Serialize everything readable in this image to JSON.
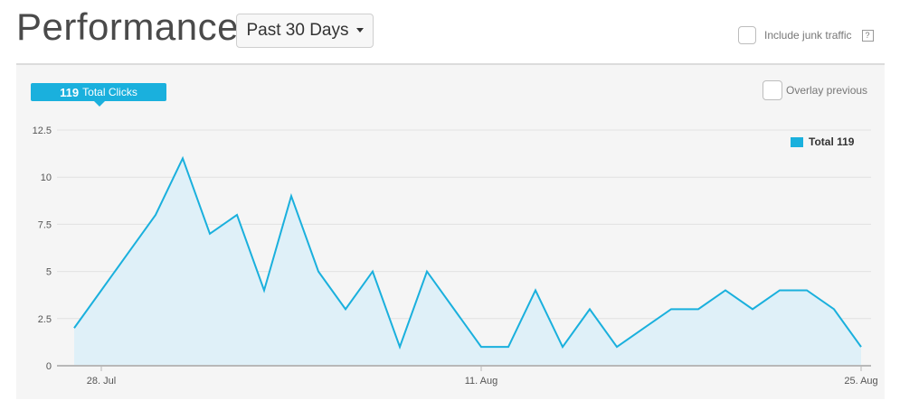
{
  "header": {
    "title": "Performance",
    "range_label": "Past 30 Days",
    "junk_label": "Include junk traffic",
    "help_glyph": "?"
  },
  "chart": {
    "badge_value": "119",
    "badge_label": "Total Clicks",
    "overlay_label": "Overlay previous",
    "legend_label": "Total 119"
  },
  "chart_data": {
    "type": "area",
    "series": [
      {
        "values": [
          2,
          4,
          6,
          8,
          11,
          7,
          8,
          4,
          9,
          5,
          3,
          5,
          1,
          5,
          3,
          1,
          1,
          4,
          1,
          3,
          1,
          2,
          3,
          3,
          4,
          3,
          4,
          4,
          3,
          1
        ]
      }
    ],
    "x_ticks": [
      {
        "index": 1,
        "label": "28. Jul"
      },
      {
        "index": 15,
        "label": "11. Aug"
      },
      {
        "index": 29,
        "label": "25. Aug"
      }
    ],
    "y_ticks": [
      {
        "value": 0,
        "label": "0"
      },
      {
        "value": 2.5,
        "label": "2.5"
      },
      {
        "value": 5,
        "label": "5"
      },
      {
        "value": 7.5,
        "label": "7.5"
      },
      {
        "value": 10,
        "label": "10"
      },
      {
        "value": 12.5,
        "label": "12.5"
      }
    ],
    "ylim": [
      0,
      12.5
    ],
    "grid": true,
    "line_color": "#1ab0dd",
    "fill_color": "#dff0f8"
  }
}
